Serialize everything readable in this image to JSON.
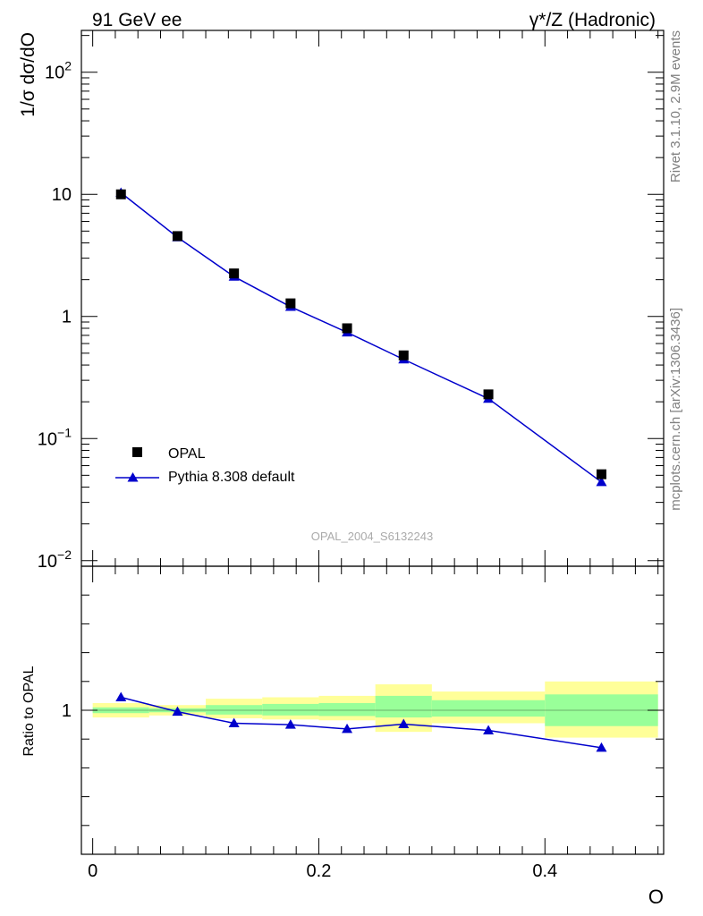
{
  "header": {
    "left": "91 GeV ee",
    "right": "γ*/Z (Hadronic)"
  },
  "side_labels": {
    "rivet": "Rivet 3.1.10,  2.9M events",
    "mcplots": "mcplots.cern.ch [arXiv:1306.3436]"
  },
  "chart_data": [
    {
      "type": "scatter",
      "panel": "main",
      "ylabel": "1/σ dσ/dO",
      "xlabel": "",
      "xlim": [
        -0.01,
        0.505
      ],
      "ylim": [
        0.009,
        220
      ],
      "yscale": "log",
      "watermark": "OPAL_2004_S6132243",
      "legend": {
        "placement": "bottom-left"
      },
      "x_ticks": [
        0,
        0.2,
        0.4
      ],
      "y_ticks": [
        {
          "value": 0.01,
          "base": "10",
          "exp": "−2"
        },
        {
          "value": 0.1,
          "base": "10",
          "exp": "−1"
        },
        {
          "value": 1,
          "label": "1"
        },
        {
          "value": 10,
          "label": "10"
        },
        {
          "value": 100,
          "base": "10",
          "exp": "2"
        }
      ],
      "series": [
        {
          "name": "OPAL",
          "marker": "square",
          "color": "#000000",
          "x": [
            0.025,
            0.075,
            0.125,
            0.175,
            0.225,
            0.275,
            0.35,
            0.45
          ],
          "y": [
            10.0,
            4.55,
            2.25,
            1.28,
            0.8,
            0.48,
            0.23,
            0.051
          ]
        },
        {
          "name": "Pythia 8.308 default",
          "marker": "triangle",
          "color": "#0000cc",
          "x": [
            0.025,
            0.075,
            0.125,
            0.175,
            0.225,
            0.275,
            0.35,
            0.45
          ],
          "y": [
            10.3,
            4.45,
            2.12,
            1.2,
            0.74,
            0.445,
            0.212,
            0.044
          ]
        }
      ]
    },
    {
      "type": "line",
      "panel": "ratio",
      "ylabel": "Ratio to OPAL",
      "xlabel": "O",
      "xlim": [
        -0.01,
        0.505
      ],
      "ylim": [
        0.5,
        1.5
      ],
      "y_ticks": [
        {
          "value": 1,
          "label": "1"
        }
      ],
      "x_ticks": [
        {
          "value": 0,
          "label": "0"
        },
        {
          "value": 0.2,
          "label": "0.2"
        },
        {
          "value": 0.4,
          "label": "0.4"
        }
      ],
      "bands": [
        {
          "x0": 0.0,
          "x1": 0.05,
          "y_lo": 0.975,
          "y_hi": 1.025,
          "g_lo": 0.99,
          "g_hi": 1.01
        },
        {
          "x0": 0.05,
          "x1": 0.1,
          "y_lo": 0.982,
          "y_hi": 1.018,
          "g_lo": 0.993,
          "g_hi": 1.007
        },
        {
          "x0": 0.1,
          "x1": 0.15,
          "y_lo": 0.972,
          "y_hi": 1.04,
          "g_lo": 0.985,
          "g_hi": 1.018
        },
        {
          "x0": 0.15,
          "x1": 0.2,
          "y_lo": 0.968,
          "y_hi": 1.045,
          "g_lo": 0.982,
          "g_hi": 1.022
        },
        {
          "x0": 0.2,
          "x1": 0.25,
          "y_lo": 0.965,
          "y_hi": 1.05,
          "g_lo": 0.98,
          "g_hi": 1.025
        },
        {
          "x0": 0.25,
          "x1": 0.3,
          "y_lo": 0.925,
          "y_hi": 1.09,
          "g_lo": 0.975,
          "g_hi": 1.05
        },
        {
          "x0": 0.3,
          "x1": 0.4,
          "y_lo": 0.955,
          "y_hi": 1.065,
          "g_lo": 0.978,
          "g_hi": 1.035
        },
        {
          "x0": 0.4,
          "x1": 0.5,
          "y_lo": 0.905,
          "y_hi": 1.1,
          "g_lo": 0.945,
          "g_hi": 1.055
        }
      ],
      "series": [
        {
          "name": "Pythia 8.308 default",
          "marker": "triangle",
          "color": "#0000cc",
          "x": [
            0.025,
            0.075,
            0.125,
            0.175,
            0.225,
            0.275,
            0.35,
            0.45
          ],
          "y": [
            1.045,
            0.995,
            0.955,
            0.95,
            0.935,
            0.952,
            0.93,
            0.87
          ]
        }
      ]
    }
  ]
}
